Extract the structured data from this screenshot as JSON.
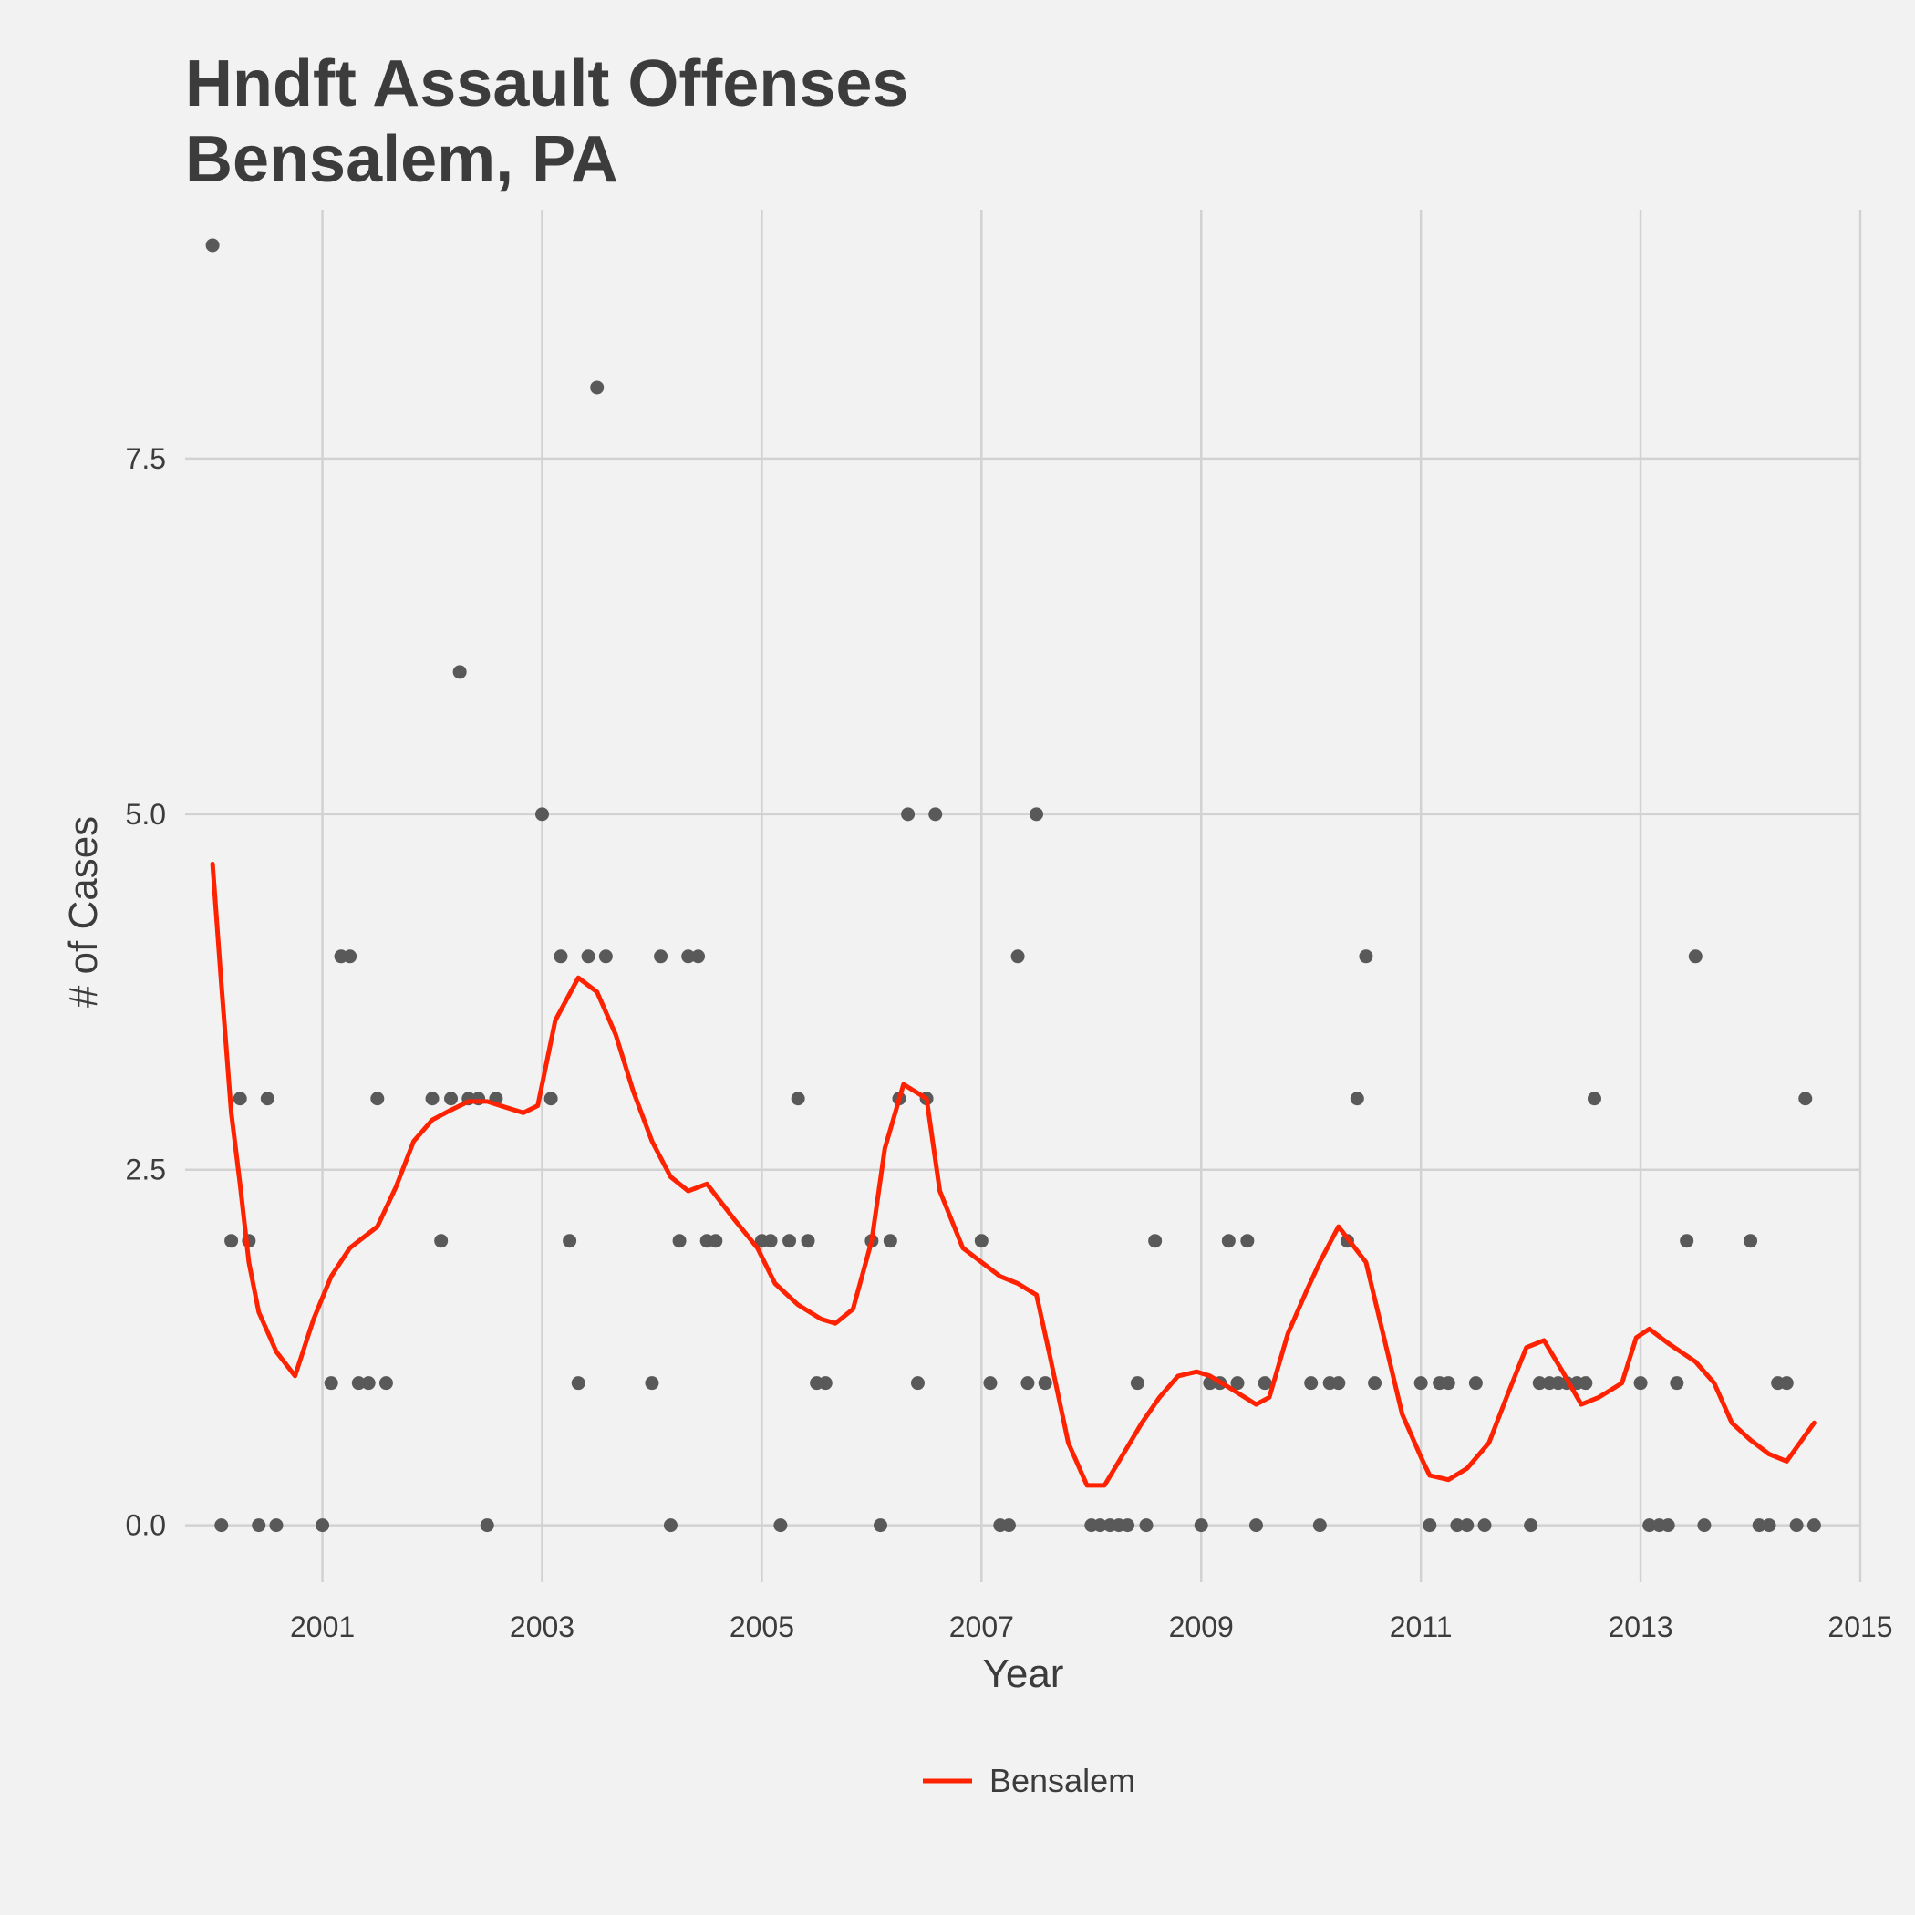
{
  "chart_data": {
    "type": "scatter",
    "title_lines": [
      "Hndft Assault Offenses",
      "Bensalem, PA"
    ],
    "xlabel": "Year",
    "ylabel": "# of Cases",
    "xlim": [
      1999.75,
      2015.0
    ],
    "ylim": [
      -0.4,
      9.25
    ],
    "x_ticks": [
      2001,
      2003,
      2005,
      2007,
      2009,
      2011,
      2013,
      2015
    ],
    "x_tick_labels": [
      "2001",
      "2003",
      "2005",
      "2007",
      "2009",
      "2011",
      "2013",
      "2015"
    ],
    "y_ticks": [
      0.0,
      2.5,
      5.0,
      7.5
    ],
    "y_tick_labels": [
      "0.0",
      "2.5",
      "5.0",
      "7.5"
    ],
    "grid": true,
    "legend_position": "bottom",
    "point_color": "#595959",
    "line_color": "#ff2200",
    "background_color": "#f2f2f2",
    "grid_color": "#d2d2d2",
    "points": [
      [
        2000.0,
        9
      ],
      [
        2000.08,
        0
      ],
      [
        2000.17,
        2
      ],
      [
        2000.25,
        3
      ],
      [
        2000.33,
        2
      ],
      [
        2000.42,
        0
      ],
      [
        2000.5,
        3
      ],
      [
        2000.58,
        0
      ],
      [
        2001.0,
        0
      ],
      [
        2001.08,
        1
      ],
      [
        2001.17,
        4
      ],
      [
        2001.25,
        4
      ],
      [
        2001.33,
        1
      ],
      [
        2001.42,
        1
      ],
      [
        2001.5,
        3
      ],
      [
        2001.58,
        1
      ],
      [
        2002.0,
        3
      ],
      [
        2002.08,
        2
      ],
      [
        2002.17,
        3
      ],
      [
        2002.25,
        6
      ],
      [
        2002.33,
        3
      ],
      [
        2002.42,
        3
      ],
      [
        2002.5,
        0
      ],
      [
        2002.58,
        3
      ],
      [
        2003.0,
        5
      ],
      [
        2003.08,
        3
      ],
      [
        2003.17,
        4
      ],
      [
        2003.25,
        2
      ],
      [
        2003.33,
        1
      ],
      [
        2003.42,
        4
      ],
      [
        2003.5,
        8
      ],
      [
        2003.58,
        4
      ],
      [
        2004.0,
        1
      ],
      [
        2004.08,
        4
      ],
      [
        2004.17,
        0
      ],
      [
        2004.25,
        2
      ],
      [
        2004.33,
        4
      ],
      [
        2004.42,
        4
      ],
      [
        2004.5,
        2
      ],
      [
        2004.58,
        2
      ],
      [
        2005.0,
        2
      ],
      [
        2005.08,
        2
      ],
      [
        2005.17,
        0
      ],
      [
        2005.25,
        2
      ],
      [
        2005.33,
        3
      ],
      [
        2005.42,
        2
      ],
      [
        2005.5,
        1
      ],
      [
        2005.58,
        1
      ],
      [
        2006.0,
        2
      ],
      [
        2006.08,
        0
      ],
      [
        2006.17,
        2
      ],
      [
        2006.25,
        3
      ],
      [
        2006.33,
        5
      ],
      [
        2006.42,
        1
      ],
      [
        2006.5,
        3
      ],
      [
        2006.58,
        5
      ],
      [
        2007.0,
        2
      ],
      [
        2007.08,
        1
      ],
      [
        2007.17,
        0
      ],
      [
        2007.25,
        0
      ],
      [
        2007.33,
        4
      ],
      [
        2007.42,
        1
      ],
      [
        2007.5,
        5
      ],
      [
        2007.58,
        1
      ],
      [
        2008.0,
        0
      ],
      [
        2008.08,
        0
      ],
      [
        2008.17,
        0
      ],
      [
        2008.25,
        0
      ],
      [
        2008.33,
        0
      ],
      [
        2008.42,
        1
      ],
      [
        2008.5,
        0
      ],
      [
        2008.58,
        2
      ],
      [
        2009.0,
        0
      ],
      [
        2009.08,
        1
      ],
      [
        2009.17,
        1
      ],
      [
        2009.25,
        2
      ],
      [
        2009.33,
        1
      ],
      [
        2009.42,
        2
      ],
      [
        2009.5,
        0
      ],
      [
        2009.58,
        1
      ],
      [
        2010.0,
        1
      ],
      [
        2010.08,
        0
      ],
      [
        2010.17,
        1
      ],
      [
        2010.25,
        1
      ],
      [
        2010.33,
        2
      ],
      [
        2010.42,
        3
      ],
      [
        2010.5,
        4
      ],
      [
        2010.58,
        1
      ],
      [
        2011.0,
        1
      ],
      [
        2011.08,
        0
      ],
      [
        2011.17,
        1
      ],
      [
        2011.25,
        1
      ],
      [
        2011.33,
        0
      ],
      [
        2011.42,
        0
      ],
      [
        2011.5,
        1
      ],
      [
        2011.58,
        0
      ],
      [
        2012.0,
        0
      ],
      [
        2012.08,
        1
      ],
      [
        2012.17,
        1
      ],
      [
        2012.25,
        1
      ],
      [
        2012.33,
        1
      ],
      [
        2012.42,
        1
      ],
      [
        2012.5,
        1
      ],
      [
        2012.58,
        3
      ],
      [
        2013.0,
        1
      ],
      [
        2013.08,
        0
      ],
      [
        2013.17,
        0
      ],
      [
        2013.25,
        0
      ],
      [
        2013.33,
        1
      ],
      [
        2013.42,
        2
      ],
      [
        2013.5,
        4
      ],
      [
        2013.58,
        0
      ],
      [
        2014.0,
        2
      ],
      [
        2014.08,
        0
      ],
      [
        2014.17,
        0
      ],
      [
        2014.25,
        1
      ],
      [
        2014.33,
        1
      ],
      [
        2014.42,
        0
      ],
      [
        2014.5,
        3
      ],
      [
        2014.58,
        0
      ]
    ],
    "series": [
      {
        "name": "Bensalem",
        "type": "line",
        "x": [
          2000.0,
          2000.08,
          2000.17,
          2000.25,
          2000.33,
          2000.42,
          2000.58,
          2000.75,
          2000.92,
          2001.08,
          2001.25,
          2001.5,
          2001.67,
          2001.83,
          2002.0,
          2002.17,
          2002.33,
          2002.5,
          2002.62,
          2002.83,
          2002.96,
          2003.12,
          2003.33,
          2003.5,
          2003.67,
          2003.83,
          2004.0,
          2004.17,
          2004.33,
          2004.5,
          2004.75,
          2004.96,
          2005.12,
          2005.33,
          2005.54,
          2005.67,
          2005.83,
          2006.0,
          2006.12,
          2006.29,
          2006.5,
          2006.62,
          2006.83,
          2007.0,
          2007.17,
          2007.33,
          2007.5,
          2007.62,
          2007.79,
          2007.96,
          2008.12,
          2008.29,
          2008.46,
          2008.62,
          2008.79,
          2008.96,
          2009.08,
          2009.25,
          2009.5,
          2009.62,
          2009.79,
          2009.96,
          2010.08,
          2010.25,
          2010.5,
          2010.67,
          2010.83,
          2011.0,
          2011.08,
          2011.25,
          2011.42,
          2011.62,
          2011.79,
          2011.96,
          2012.12,
          2012.29,
          2012.46,
          2012.62,
          2012.83,
          2012.96,
          2013.08,
          2013.25,
          2013.5,
          2013.67,
          2013.83,
          2014.0,
          2014.17,
          2014.33,
          2014.58
        ],
        "y": [
          4.65,
          3.8,
          2.9,
          2.4,
          1.85,
          1.5,
          1.22,
          1.05,
          1.45,
          1.75,
          1.95,
          2.1,
          2.38,
          2.7,
          2.85,
          2.92,
          2.98,
          2.98,
          2.95,
          2.9,
          2.95,
          3.55,
          3.85,
          3.75,
          3.45,
          3.05,
          2.7,
          2.45,
          2.35,
          2.4,
          2.15,
          1.95,
          1.7,
          1.55,
          1.45,
          1.42,
          1.52,
          2.0,
          2.65,
          3.1,
          3.0,
          2.35,
          1.95,
          1.85,
          1.75,
          1.7,
          1.62,
          1.2,
          0.58,
          0.28,
          0.28,
          0.5,
          0.72,
          0.9,
          1.05,
          1.08,
          1.05,
          0.97,
          0.85,
          0.9,
          1.35,
          1.65,
          1.85,
          2.1,
          1.85,
          1.3,
          0.78,
          0.48,
          0.35,
          0.32,
          0.4,
          0.58,
          0.92,
          1.25,
          1.3,
          1.08,
          0.85,
          0.9,
          1.0,
          1.32,
          1.38,
          1.28,
          1.15,
          1.0,
          0.72,
          0.6,
          0.5,
          0.45,
          0.72
        ]
      }
    ]
  }
}
